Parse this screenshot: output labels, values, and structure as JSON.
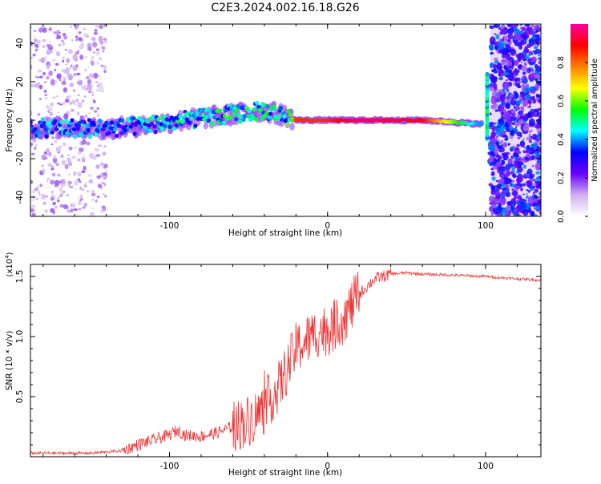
{
  "figure": {
    "title": "C2E3.2024.002.16.18.G26"
  },
  "chart_data": [
    {
      "type": "heatmap",
      "name": "spectrogram",
      "xlabel": "Height of straight line (km)",
      "ylabel": "Frequency (Hz)",
      "xlim": [
        -188,
        135
      ],
      "ylim": [
        -50,
        50
      ],
      "x_ticks": [
        -100,
        0,
        100
      ],
      "x_tick_labels": [
        "-100",
        "0",
        "100"
      ],
      "y_ticks": [
        -40,
        -20,
        0,
        20,
        40
      ],
      "y_tick_labels": [
        "-40",
        "-20",
        "0",
        "20",
        "40"
      ],
      "colorbar": {
        "label": "Normalized spectral amplitude",
        "range": [
          0,
          1
        ],
        "ticks": [
          0.0,
          0.2,
          0.4,
          0.6,
          0.8
        ],
        "tick_labels": [
          "0.0",
          "0.2",
          "0.4",
          "0.6",
          "0.8"
        ],
        "colormap": [
          "#ffffff",
          "#d0b0f0",
          "#6a00ff",
          "#0000ff",
          "#00ffff",
          "#00ff00",
          "#ffff00",
          "#ff8000",
          "#ff0000",
          "#ff00a0"
        ]
      },
      "ridge": [
        {
          "x": -188,
          "y": -4,
          "amp": 0.4
        },
        {
          "x": -160,
          "y": -4,
          "amp": 0.45
        },
        {
          "x": -130,
          "y": -4,
          "amp": 0.4
        },
        {
          "x": -100,
          "y": -1,
          "amp": 0.5
        },
        {
          "x": -80,
          "y": 1,
          "amp": 0.5
        },
        {
          "x": -60,
          "y": 3,
          "amp": 0.55
        },
        {
          "x": -40,
          "y": 5,
          "amp": 0.5
        },
        {
          "x": -25,
          "y": 2,
          "amp": 0.55
        },
        {
          "x": -20,
          "y": 0,
          "amp": 0.85
        },
        {
          "x": 0,
          "y": 0,
          "amp": 0.85
        },
        {
          "x": 20,
          "y": 0,
          "amp": 0.95
        },
        {
          "x": 60,
          "y": 0,
          "amp": 0.9
        },
        {
          "x": 80,
          "y": -1,
          "amp": 0.6
        },
        {
          "x": 95,
          "y": -2,
          "amp": 0.4
        }
      ],
      "noise_regions": [
        {
          "x_range": [
            -188,
            -140
          ],
          "density": "high"
        },
        {
          "x_range": [
            103,
            135
          ],
          "density": "very-high"
        }
      ]
    },
    {
      "type": "line",
      "name": "snr",
      "xlabel": "Height of straight line (km)",
      "ylabel": "SNR (10 * v/v)",
      "y_multiplier_label": "(x10",
      "y_multiplier_exp": "4",
      "y_multiplier_close": ")",
      "xlim": [
        -188,
        135
      ],
      "ylim": [
        0,
        1.6
      ],
      "x_ticks": [
        -100,
        0,
        100
      ],
      "x_tick_labels": [
        "-100",
        "0",
        "100"
      ],
      "y_ticks": [
        0.5,
        1.0,
        1.5
      ],
      "y_tick_labels": [
        "0.5",
        "1.0",
        "1.5"
      ],
      "color": "#ee3333",
      "series": [
        {
          "x": [
            -188,
            -170,
            -150,
            -130,
            -120,
            -110,
            -100,
            -95,
            -90,
            -80,
            -70,
            -60,
            -50,
            -40,
            -35,
            -30,
            -25,
            -20,
            -15,
            -10,
            -5,
            0,
            5,
            10,
            15,
            20,
            25,
            30,
            40,
            50,
            60,
            80,
            100,
            120,
            135
          ],
          "y": [
            0.03,
            0.03,
            0.03,
            0.05,
            0.1,
            0.14,
            0.18,
            0.22,
            0.18,
            0.17,
            0.2,
            0.25,
            0.3,
            0.4,
            0.5,
            0.6,
            0.75,
            0.9,
            0.95,
            1.0,
            1.05,
            1.05,
            1.1,
            1.15,
            1.25,
            1.35,
            1.42,
            1.48,
            1.52,
            1.53,
            1.52,
            1.51,
            1.5,
            1.48,
            1.47
          ]
        }
      ]
    }
  ]
}
